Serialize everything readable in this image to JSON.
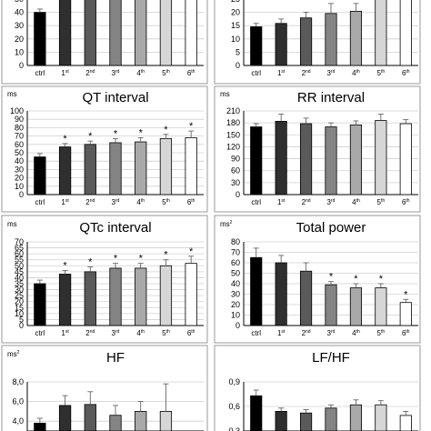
{
  "categories": [
    {
      "base": "ctrl",
      "sup": ""
    },
    {
      "base": "1",
      "sup": "st"
    },
    {
      "base": "2",
      "sup": "nd"
    },
    {
      "base": "3",
      "sup": "rd"
    },
    {
      "base": "4",
      "sup": "th"
    },
    {
      "base": "5",
      "sup": "th"
    },
    {
      "base": "6",
      "sup": "th"
    }
  ],
  "bar_colors": [
    "#000000",
    "#2f2f2f",
    "#5a5a5a",
    "#848484",
    "#a9a9a9",
    "#d6d6d6",
    "#ffffff"
  ],
  "chart_data": [
    {
      "type": "bar",
      "title": "",
      "unit": "",
      "ylim": [
        0,
        60
      ],
      "yticks": [
        "0",
        "10",
        "20",
        "30",
        "40",
        "50"
      ],
      "values": [
        48,
        60,
        60,
        60,
        60,
        60,
        60
      ],
      "errors": [
        3,
        0,
        0,
        0,
        0,
        0,
        0
      ],
      "significant": [
        false,
        false,
        false,
        false,
        false,
        false,
        false
      ]
    },
    {
      "type": "bar",
      "title": "",
      "unit": "",
      "ylim": [
        0,
        30
      ],
      "yticks": [
        "0",
        "5",
        "10",
        "15",
        "20",
        "25"
      ],
      "values": [
        17.5,
        19,
        21.5,
        23.5,
        24.5,
        30,
        30
      ],
      "errors": [
        1.5,
        2,
        2.5,
        4.5,
        3.5,
        0,
        0
      ],
      "significant": [
        false,
        false,
        false,
        false,
        false,
        false,
        false
      ]
    },
    {
      "type": "bar",
      "title": "QT interval",
      "unit": "ms",
      "ylim": [
        0,
        100
      ],
      "yticks": [
        "0",
        "10",
        "20",
        "30",
        "40",
        "50",
        "60",
        "70",
        "80",
        "90",
        "100"
      ],
      "values": [
        45,
        57,
        60,
        62,
        63,
        67,
        68
      ],
      "errors": [
        4,
        4,
        4,
        5,
        5,
        5,
        8
      ],
      "significant": [
        false,
        true,
        true,
        true,
        true,
        true,
        true
      ]
    },
    {
      "type": "bar",
      "title": "RR interval",
      "unit": "ms",
      "ylim": [
        0,
        210
      ],
      "yticks": [
        "0",
        "30",
        "60",
        "90",
        "120",
        "150",
        "180",
        "210"
      ],
      "values": [
        170,
        184,
        178,
        170,
        175,
        186,
        178
      ],
      "errors": [
        8,
        18,
        14,
        10,
        10,
        16,
        10
      ],
      "significant": [
        false,
        false,
        false,
        false,
        false,
        false,
        false
      ]
    },
    {
      "type": "bar",
      "title": "QTc interval",
      "unit": "ms",
      "ylim": [
        0,
        70
      ],
      "yticks": [
        "0",
        "5",
        "10",
        "15",
        "20",
        "25",
        "30",
        "35",
        "40",
        "45",
        "50",
        "55",
        "60",
        "65",
        "70"
      ],
      "values": [
        35,
        43,
        45,
        48,
        48,
        50,
        52
      ],
      "errors": [
        3,
        3,
        4,
        4,
        4,
        5,
        6
      ],
      "significant": [
        false,
        true,
        true,
        true,
        true,
        true,
        true
      ]
    },
    {
      "type": "bar",
      "title": "Total power",
      "unit": "ms",
      "unit_sup": "2",
      "ylim": [
        0,
        80
      ],
      "yticks": [
        "0",
        "10",
        "20",
        "30",
        "40",
        "50",
        "60",
        "70",
        "80"
      ],
      "values": [
        65,
        60,
        52,
        39,
        36,
        36,
        22
      ],
      "errors": [
        9,
        7,
        8,
        3,
        4,
        4,
        3
      ],
      "significant": [
        false,
        false,
        false,
        true,
        true,
        true,
        true
      ]
    },
    {
      "type": "bar",
      "title": "HF",
      "unit": "ms",
      "unit_sup": "2",
      "ylim": [
        3.0,
        8.0
      ],
      "yticks": [
        "4,0",
        "6,0",
        "8,0"
      ],
      "values": [
        3.8,
        5.6,
        5.7,
        4.6,
        5.0,
        5.0,
        2.0
      ],
      "errors": [
        0.5,
        1.0,
        1.3,
        1.0,
        1.0,
        2.8,
        0
      ],
      "significant": [
        false,
        false,
        false,
        false,
        false,
        false,
        true
      ]
    },
    {
      "type": "bar",
      "title": "LF/HF",
      "unit": "",
      "ylim": [
        0.3,
        0.9
      ],
      "yticks": [
        "0,3",
        "0,6",
        "0,9"
      ],
      "values": [
        0.73,
        0.54,
        0.52,
        0.58,
        0.62,
        0.62,
        0.49
      ],
      "errors": [
        0.07,
        0.04,
        0.04,
        0.04,
        0.06,
        0.05,
        0.05
      ],
      "significant": [
        false,
        false,
        false,
        false,
        false,
        false,
        false
      ]
    }
  ]
}
